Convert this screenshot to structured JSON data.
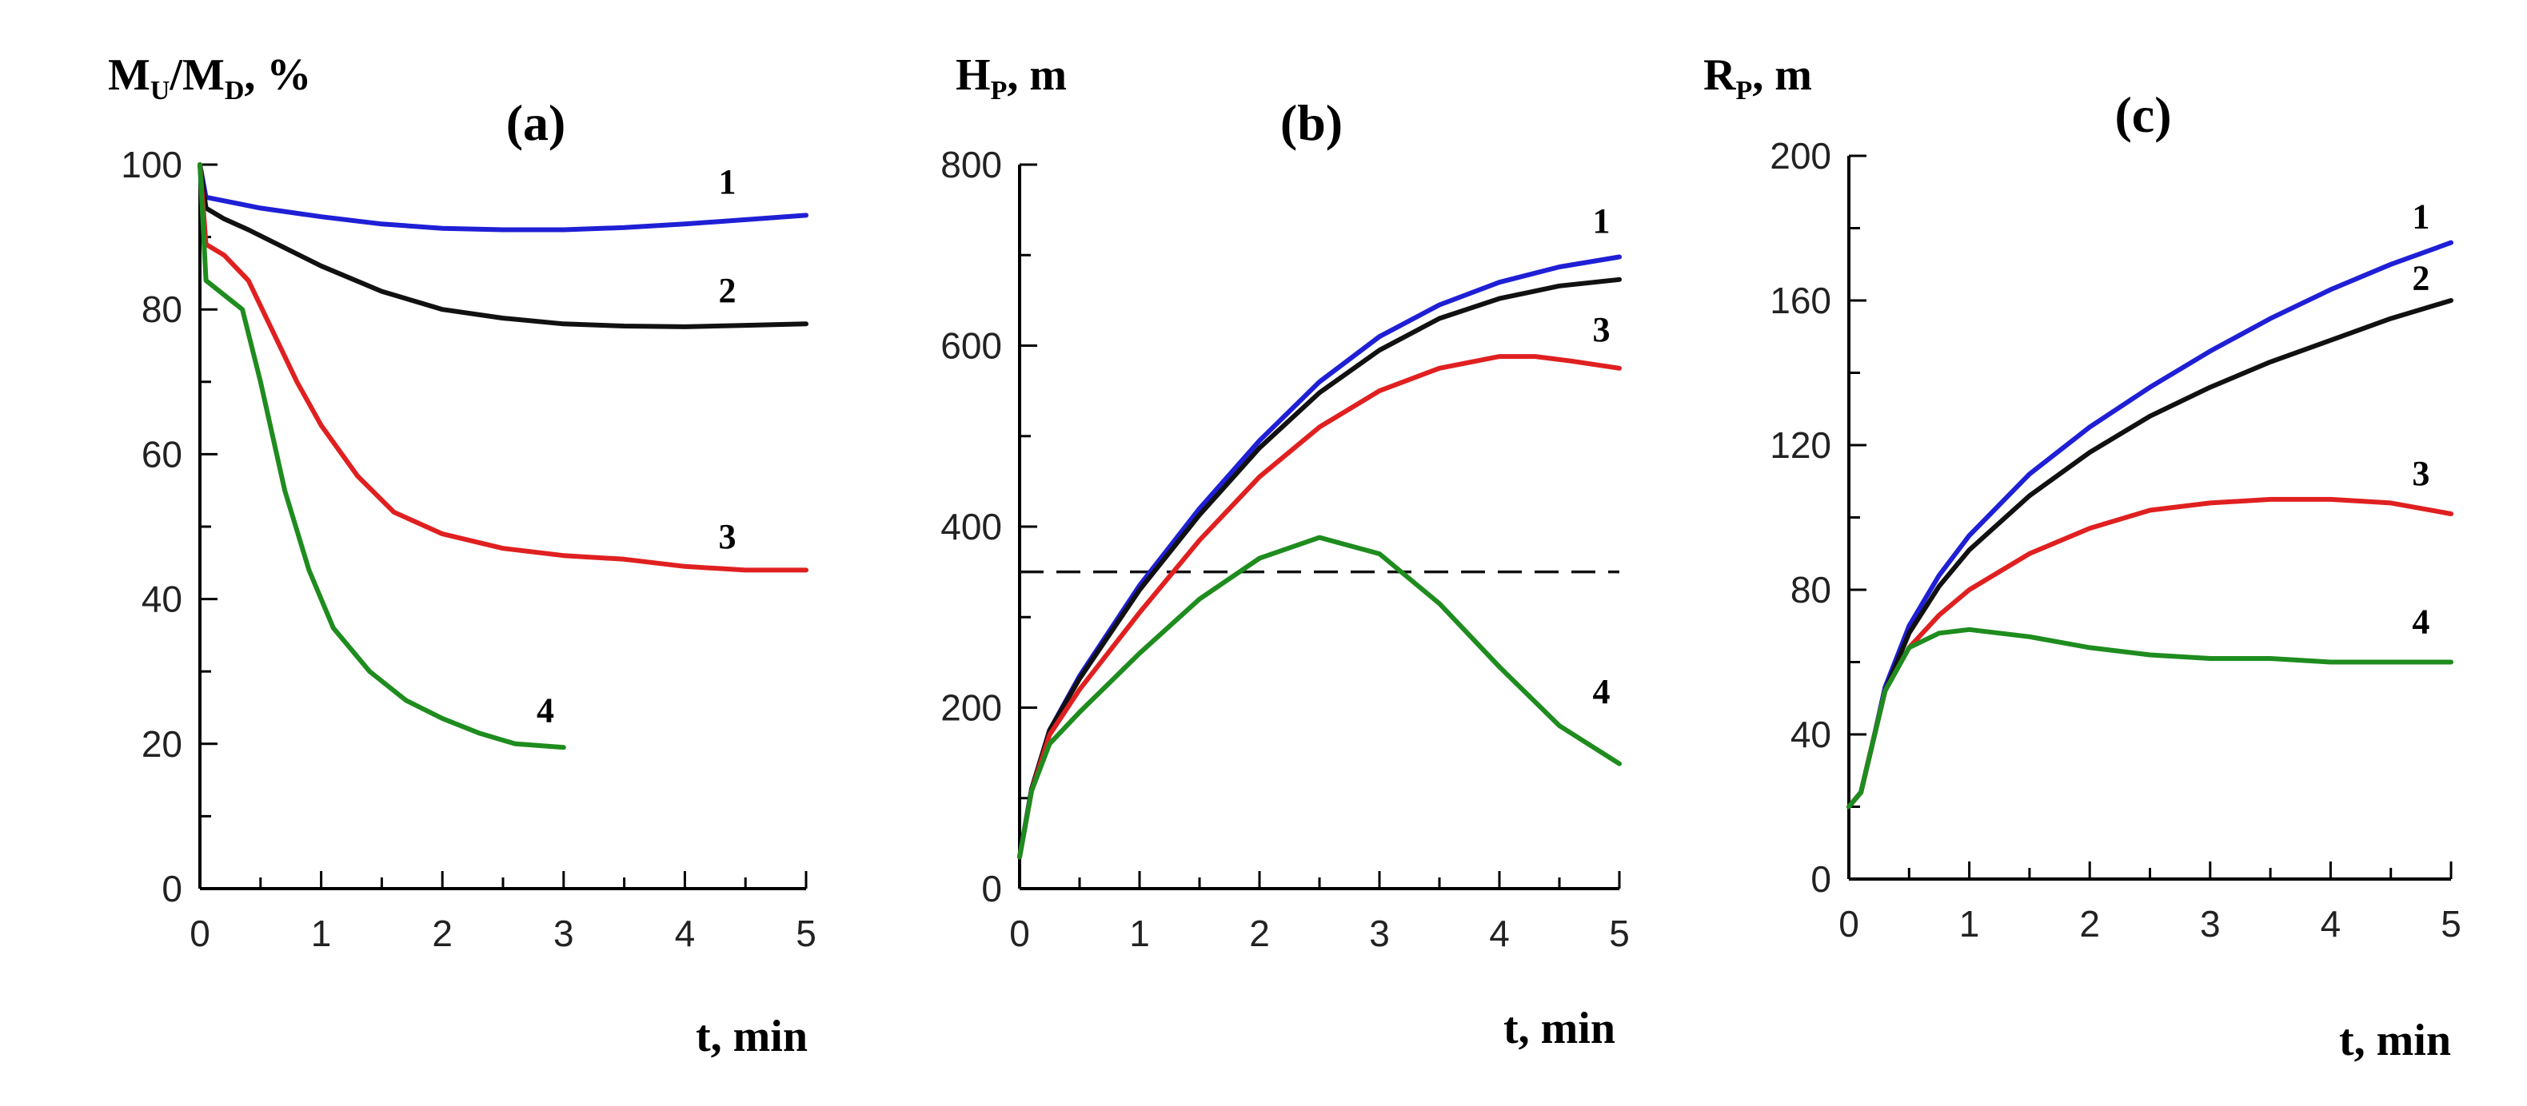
{
  "chart_data": [
    {
      "type": "line",
      "panel": "(a)",
      "title": "(a)",
      "ylabel_main": "M",
      "ylabel_sub1": "U",
      "ylabel_mid": "/M",
      "ylabel_sub2": "D",
      "ylabel_tail": ", %",
      "xlabel": "t, min",
      "xlim": [
        0,
        5
      ],
      "ylim": [
        0,
        100
      ],
      "xticks": [
        0,
        1,
        2,
        3,
        4,
        5
      ],
      "yticks": [
        0,
        20,
        40,
        60,
        80,
        100
      ],
      "series": [
        {
          "name": "1",
          "color": "#1f1fd6",
          "x": [
            0,
            0.05,
            0.2,
            0.5,
            1,
            1.5,
            2,
            2.5,
            3,
            3.5,
            4,
            4.5,
            5
          ],
          "y": [
            100,
            95.5,
            95,
            94,
            92.8,
            91.8,
            91.2,
            91,
            91,
            91.3,
            91.8,
            92.4,
            93
          ]
        },
        {
          "name": "2",
          "color": "#111111",
          "x": [
            0,
            0.05,
            0.2,
            0.4,
            0.7,
            1,
            1.5,
            2,
            2.5,
            3,
            3.5,
            4,
            4.5,
            5
          ],
          "y": [
            100,
            94,
            92.5,
            91,
            88.5,
            86,
            82.5,
            80,
            78.8,
            78,
            77.7,
            77.6,
            77.8,
            78
          ]
        },
        {
          "name": "3",
          "color": "#e02020",
          "x": [
            0,
            0.05,
            0.2,
            0.4,
            0.6,
            0.8,
            1,
            1.3,
            1.6,
            2,
            2.5,
            3,
            3.5,
            4,
            4.5,
            5
          ],
          "y": [
            100,
            89,
            87.5,
            84,
            77,
            70,
            64,
            57,
            52,
            49,
            47,
            46,
            45.5,
            44.5,
            44,
            44
          ]
        },
        {
          "name": "4",
          "color": "#1e8c1e",
          "x": [
            0,
            0.05,
            0.2,
            0.35,
            0.5,
            0.7,
            0.9,
            1.1,
            1.4,
            1.7,
            2,
            2.3,
            2.6,
            3
          ],
          "y": [
            100,
            84,
            82,
            80,
            70,
            55,
            44,
            36,
            30,
            26,
            23.5,
            21.5,
            20,
            19.5
          ]
        }
      ],
      "curve_labels": [
        {
          "text": "1",
          "x": 4.35,
          "y": 96
        },
        {
          "text": "2",
          "x": 4.35,
          "y": 81
        },
        {
          "text": "3",
          "x": 4.35,
          "y": 47
        },
        {
          "text": "4",
          "x": 2.85,
          "y": 23
        }
      ]
    },
    {
      "type": "line",
      "panel": "(b)",
      "title": "(b)",
      "ylabel_main": "H",
      "ylabel_sub1": "P",
      "ylabel_mid": "",
      "ylabel_sub2": "",
      "ylabel_tail": ", m",
      "xlabel": "t, min",
      "xlim": [
        0,
        5
      ],
      "ylim": [
        0,
        800
      ],
      "xticks": [
        0,
        1,
        2,
        3,
        4,
        5
      ],
      "yticks": [
        0,
        200,
        400,
        600,
        800
      ],
      "reference_line": {
        "y": 350,
        "style": "dashed"
      },
      "series": [
        {
          "name": "1",
          "color": "#1f1fd6",
          "x": [
            0,
            0.1,
            0.25,
            0.5,
            1,
            1.5,
            2,
            2.5,
            3,
            3.5,
            4,
            4.5,
            5
          ],
          "y": [
            35,
            110,
            175,
            235,
            335,
            420,
            495,
            560,
            610,
            645,
            670,
            687,
            698
          ]
        },
        {
          "name": "2",
          "color": "#111111",
          "x": [
            0,
            0.1,
            0.25,
            0.5,
            1,
            1.5,
            2,
            2.5,
            3,
            3.5,
            4,
            4.5,
            5
          ],
          "y": [
            35,
            110,
            175,
            232,
            330,
            413,
            487,
            548,
            595,
            630,
            652,
            666,
            673
          ]
        },
        {
          "name": "3",
          "color": "#e02020",
          "x": [
            0,
            0.1,
            0.25,
            0.5,
            1,
            1.5,
            2,
            2.5,
            3,
            3.5,
            4,
            4.3,
            4.6,
            5
          ],
          "y": [
            35,
            108,
            170,
            220,
            305,
            385,
            455,
            510,
            550,
            575,
            588,
            588,
            583,
            575
          ]
        },
        {
          "name": "4",
          "color": "#1e8c1e",
          "x": [
            0,
            0.1,
            0.25,
            0.5,
            1,
            1.5,
            2,
            2.5,
            3,
            3.5,
            4,
            4.5,
            5
          ],
          "y": [
            35,
            108,
            160,
            195,
            260,
            320,
            365,
            388,
            370,
            315,
            245,
            180,
            138
          ]
        }
      ],
      "curve_labels": [
        {
          "text": "1",
          "x": 4.85,
          "y": 725
        },
        {
          "text": "3",
          "x": 4.85,
          "y": 605
        },
        {
          "text": "4",
          "x": 4.85,
          "y": 205
        }
      ]
    },
    {
      "type": "line",
      "panel": "(c)",
      "title": "(c)",
      "ylabel_main": "R",
      "ylabel_sub1": "P",
      "ylabel_mid": "",
      "ylabel_sub2": "",
      "ylabel_tail": ", m",
      "xlabel": "t, min",
      "xlim": [
        0,
        5
      ],
      "ylim": [
        0,
        200
      ],
      "xticks": [
        0,
        1,
        2,
        3,
        4,
        5
      ],
      "yticks": [
        0,
        40,
        80,
        120,
        160,
        200
      ],
      "series": [
        {
          "name": "1",
          "color": "#1f1fd6",
          "x": [
            0,
            0.1,
            0.2,
            0.3,
            0.5,
            0.75,
            1,
            1.5,
            2,
            2.5,
            3,
            3.5,
            4,
            4.5,
            5
          ],
          "y": [
            20,
            24,
            38,
            53,
            70,
            84,
            95,
            112,
            125,
            136,
            146,
            155,
            163,
            170,
            176
          ]
        },
        {
          "name": "2",
          "color": "#111111",
          "x": [
            0,
            0.1,
            0.2,
            0.3,
            0.5,
            0.75,
            1,
            1.5,
            2,
            2.5,
            3,
            3.5,
            4,
            4.5,
            5
          ],
          "y": [
            20,
            24,
            38,
            52,
            68,
            81,
            91,
            106,
            118,
            128,
            136,
            143,
            149,
            155,
            160
          ]
        },
        {
          "name": "3",
          "color": "#e02020",
          "x": [
            0,
            0.1,
            0.2,
            0.3,
            0.5,
            0.75,
            1,
            1.5,
            2,
            2.5,
            3,
            3.5,
            4,
            4.5,
            5
          ],
          "y": [
            20,
            24,
            38,
            52,
            64,
            73,
            80,
            90,
            97,
            102,
            104,
            105,
            105,
            104,
            101
          ]
        },
        {
          "name": "4",
          "color": "#1e8c1e",
          "x": [
            0,
            0.1,
            0.2,
            0.3,
            0.5,
            0.75,
            1,
            1.5,
            2,
            2.5,
            3,
            3.5,
            4,
            4.5,
            5
          ],
          "y": [
            20,
            24,
            38,
            52,
            64,
            68,
            69,
            67,
            64,
            62,
            61,
            61,
            60,
            60,
            60
          ]
        }
      ],
      "curve_labels": [
        {
          "text": "1",
          "x": 4.75,
          "y": 180
        },
        {
          "text": "2",
          "x": 4.75,
          "y": 163
        },
        {
          "text": "3",
          "x": 4.75,
          "y": 109
        },
        {
          "text": "4",
          "x": 4.75,
          "y": 68
        }
      ]
    }
  ]
}
